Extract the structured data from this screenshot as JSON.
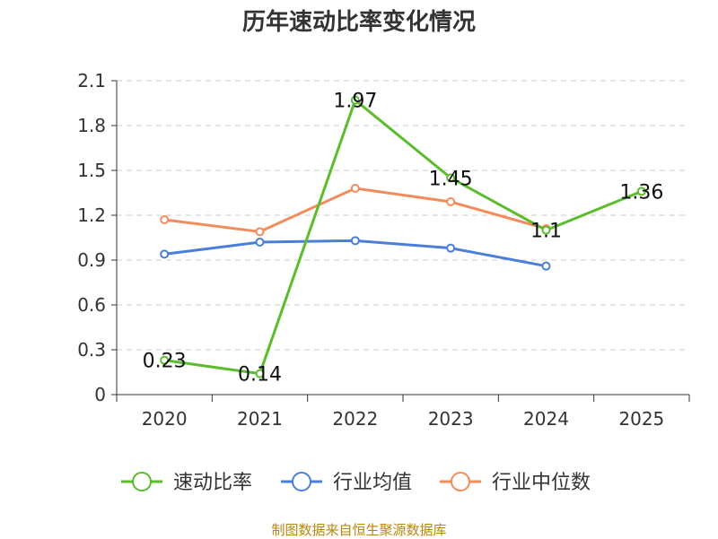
{
  "chart_data": {
    "type": "line",
    "title": "历年速动比率变化情况",
    "categories": [
      "2020",
      "2021",
      "2022",
      "2023",
      "2024",
      "2025"
    ],
    "ylim": [
      0,
      2.1
    ],
    "yticks": [
      "0",
      "0.3",
      "0.6",
      "0.9",
      "1.2",
      "1.5",
      "1.8",
      "2.1"
    ],
    "grid": true,
    "legend_position": "bottom",
    "series": [
      {
        "name": "速动比率",
        "color": "#5cbd2c",
        "values": [
          0.23,
          0.14,
          1.97,
          1.45,
          1.1,
          1.36
        ],
        "data_labels": [
          "0.23",
          "0.14",
          "1.97",
          "1.45",
          "1.1",
          "1.36"
        ]
      },
      {
        "name": "行业均值",
        "color": "#4a7fd9",
        "values": [
          0.94,
          1.02,
          1.03,
          0.98,
          0.86,
          null
        ]
      },
      {
        "name": "行业中位数",
        "color": "#f28c5a",
        "values": [
          1.17,
          1.09,
          1.38,
          1.29,
          1.11,
          null
        ]
      }
    ]
  },
  "source": "制图数据来自恒生聚源数据库"
}
